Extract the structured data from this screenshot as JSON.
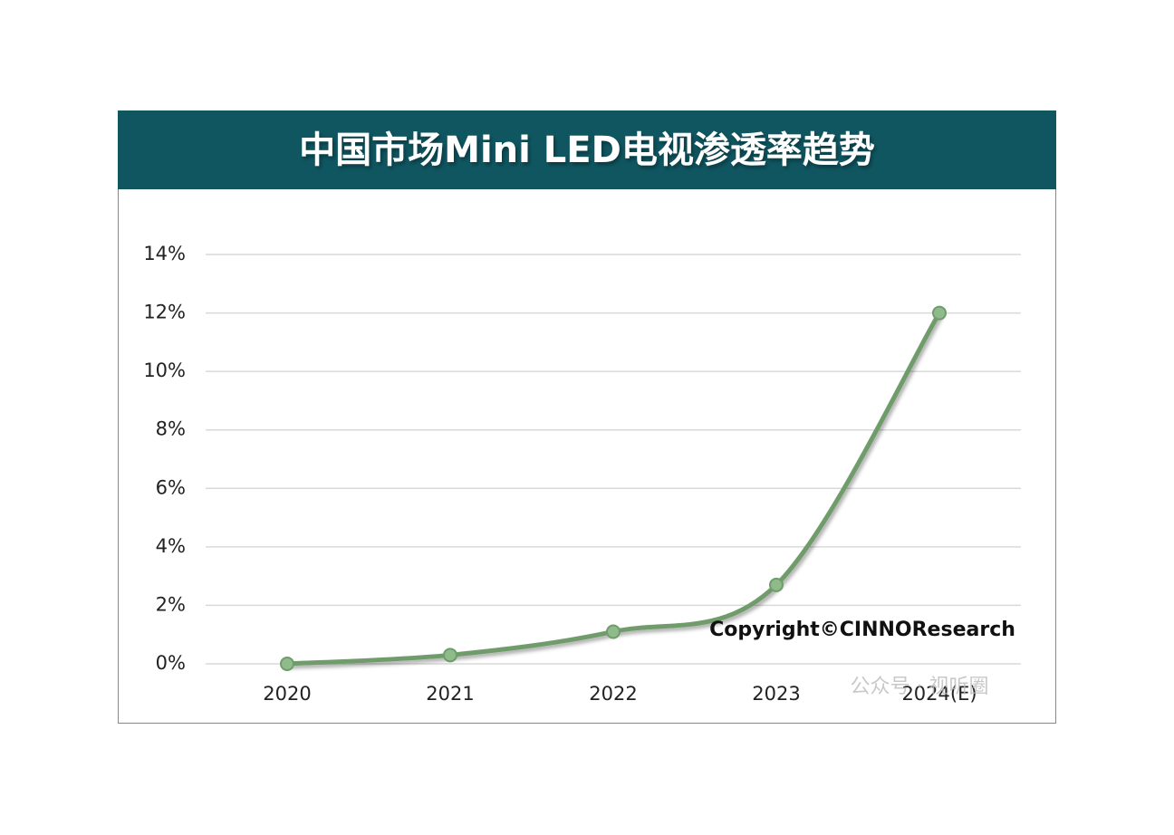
{
  "chart_data": {
    "type": "line",
    "title": "中国市场Mini LED电视渗透率趋势",
    "categories": [
      "2020",
      "2021",
      "2022",
      "2023",
      "2024(E)"
    ],
    "series": [
      {
        "name": "Mini LED电视渗透率",
        "color": "#6f9c6c",
        "values": [
          0,
          0.3,
          1.1,
          2.7,
          12
        ]
      }
    ],
    "ylim": [
      0,
      14
    ],
    "yticks": [
      {
        "value": 0,
        "label": "0%"
      },
      {
        "value": 2,
        "label": "2%"
      },
      {
        "value": 4,
        "label": "4%"
      },
      {
        "value": 6,
        "label": "6%"
      },
      {
        "value": 8,
        "label": "8%"
      },
      {
        "value": 10,
        "label": "10%"
      },
      {
        "value": 12,
        "label": "12%"
      },
      {
        "value": 14,
        "label": "14%"
      }
    ],
    "grid": true,
    "annotations": [
      "Copyright©CINNOResearch",
      "公众号 · 视听圈"
    ]
  }
}
